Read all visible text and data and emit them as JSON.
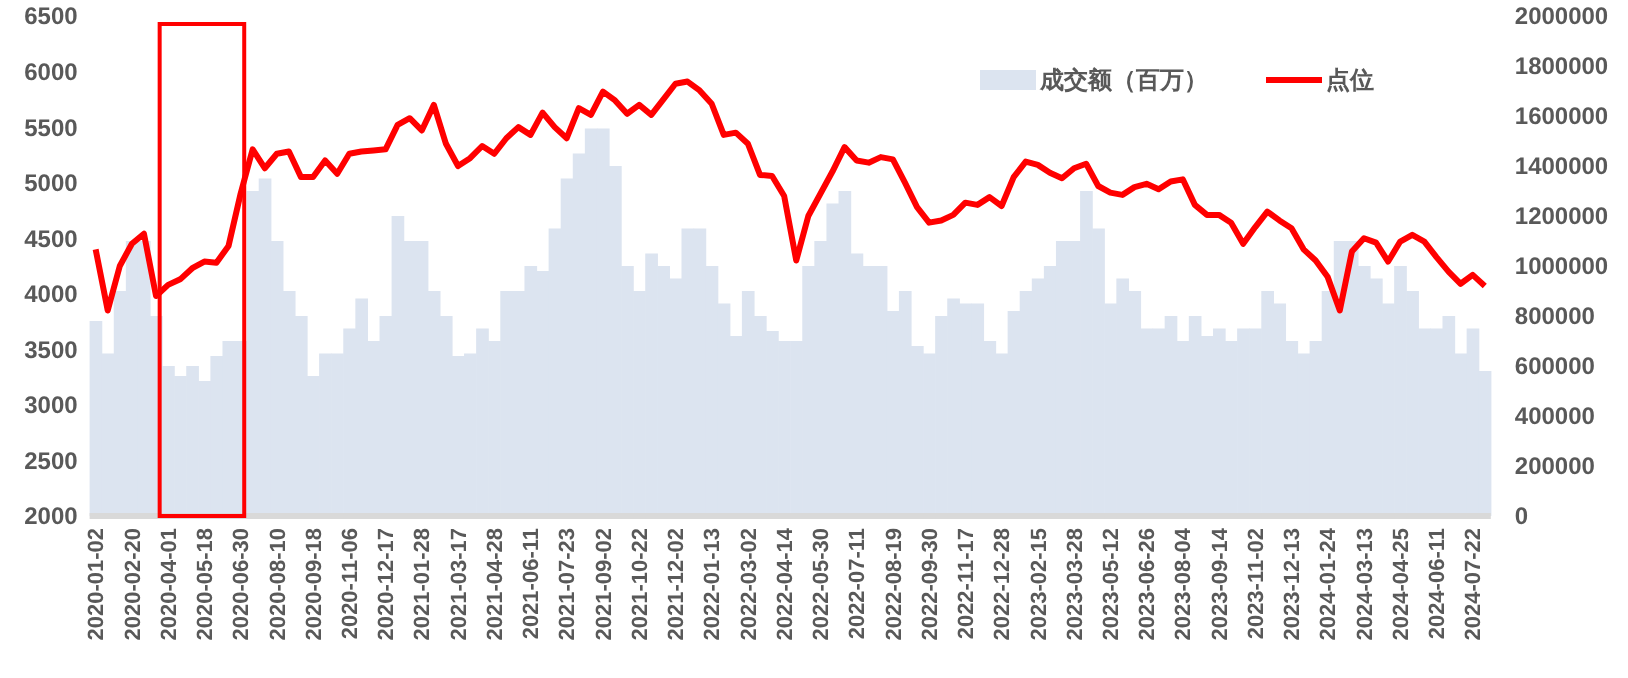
{
  "chart_data": {
    "type": "line",
    "categories": [
      "2020-01-02",
      null,
      null,
      "2020-02-20",
      null,
      null,
      "2020-04-01",
      null,
      null,
      "2020-05-18",
      null,
      null,
      "2020-06-30",
      null,
      null,
      "2020-08-10",
      null,
      null,
      "2020-09-18",
      null,
      null,
      "2020-11-06",
      null,
      null,
      "2020-12-17",
      null,
      null,
      "2021-01-28",
      null,
      null,
      "2021-03-17",
      null,
      null,
      "2021-04-28",
      null,
      null,
      "2021-06-11",
      null,
      null,
      "2021-07-23",
      null,
      null,
      "2021-09-02",
      null,
      null,
      "2021-10-22",
      null,
      null,
      "2021-12-02",
      null,
      null,
      "2022-01-13",
      null,
      null,
      "2022-03-02",
      null,
      null,
      "2022-04-14",
      null,
      null,
      "2022-05-30",
      null,
      null,
      "2022-07-11",
      null,
      null,
      "2022-08-19",
      null,
      null,
      "2022-09-30",
      null,
      null,
      "2022-11-17",
      null,
      null,
      "2022-12-28",
      null,
      null,
      "2023-02-15",
      null,
      null,
      "2023-03-28",
      null,
      null,
      "2023-05-12",
      null,
      null,
      "2023-06-26",
      null,
      null,
      "2023-08-04",
      null,
      null,
      "2023-09-14",
      null,
      null,
      "2023-11-02",
      null,
      null,
      "2023-12-13",
      null,
      null,
      "2024-01-24",
      null,
      null,
      "2024-03-13",
      null,
      null,
      "2024-04-25",
      null,
      null,
      "2024-06-11",
      null,
      null,
      "2024-07-22",
      null
    ],
    "series": [
      {
        "name": "成交额（百万）",
        "type": "bar",
        "axis": "y2",
        "color": "#dce4f0",
        "values": [
          780000,
          650000,
          900000,
          1100000,
          1100000,
          800000,
          600000,
          560000,
          600000,
          540000,
          640000,
          700000,
          700000,
          1300000,
          1350000,
          1100000,
          900000,
          800000,
          560000,
          650000,
          650000,
          750000,
          870000,
          700000,
          800000,
          1200000,
          1100000,
          1100000,
          900000,
          800000,
          640000,
          650000,
          750000,
          700000,
          900000,
          900000,
          1000000,
          980000,
          1150000,
          1350000,
          1450000,
          1550000,
          1550000,
          1400000,
          1000000,
          900000,
          1050000,
          1000000,
          950000,
          1150000,
          1150000,
          1000000,
          850000,
          720000,
          900000,
          800000,
          740000,
          700000,
          700000,
          1000000,
          1100000,
          1250000,
          1300000,
          1050000,
          1000000,
          1000000,
          820000,
          900000,
          680000,
          650000,
          800000,
          870000,
          850000,
          850000,
          700000,
          650000,
          820000,
          900000,
          950000,
          1000000,
          1100000,
          1100000,
          1300000,
          1150000,
          850000,
          950000,
          900000,
          750000,
          750000,
          800000,
          700000,
          800000,
          720000,
          750000,
          700000,
          750000,
          750000,
          900000,
          850000,
          700000,
          650000,
          700000,
          900000,
          1100000,
          1100000,
          1000000,
          950000,
          850000,
          1000000,
          900000,
          750000,
          750000,
          800000,
          650000,
          750000,
          580000
        ]
      },
      {
        "name": "点位",
        "type": "line",
        "color": "#ff0000",
        "values": [
          4400,
          3850,
          4250,
          4450,
          4540,
          3980,
          4080,
          4130,
          4230,
          4290,
          4280,
          4430,
          4900,
          5300,
          5130,
          5260,
          5280,
          5050,
          5050,
          5200,
          5080,
          5260,
          5280,
          5290,
          5300,
          5520,
          5580,
          5470,
          5700,
          5350,
          5150,
          5220,
          5330,
          5260,
          5400,
          5500,
          5430,
          5630,
          5500,
          5400,
          5670,
          5610,
          5820,
          5740,
          5620,
          5700,
          5610,
          5750,
          5890,
          5910,
          5830,
          5710,
          5430,
          5450,
          5350,
          5070,
          5060,
          4880,
          4300,
          4700,
          4900,
          5100,
          5320,
          5200,
          5180,
          5230,
          5210,
          5000,
          4780,
          4640,
          4660,
          4710,
          4820,
          4800,
          4870,
          4790,
          5050,
          5190,
          5160,
          5090,
          5040,
          5130,
          5170,
          4970,
          4910,
          4890,
          4960,
          4990,
          4940,
          5010,
          5030,
          4800,
          4710,
          4710,
          4640,
          4450,
          4600,
          4740,
          4660,
          4590,
          4400,
          4300,
          4150,
          3850,
          4380,
          4500,
          4460,
          4290,
          4470,
          4530,
          4470,
          4330,
          4200,
          4090,
          4170,
          4070
        ]
      }
    ],
    "ylim": [
      2000,
      6500
    ],
    "yticks": [
      2000,
      2500,
      3000,
      3500,
      4000,
      4500,
      5000,
      5500,
      6000,
      6500
    ],
    "y2lim": [
      0,
      2000000
    ],
    "y2ticks": [
      0,
      200000,
      400000,
      600000,
      800000,
      1000000,
      1200000,
      1400000,
      1600000,
      1800000,
      2000000
    ],
    "legend": "top right",
    "grid": false
  }
}
